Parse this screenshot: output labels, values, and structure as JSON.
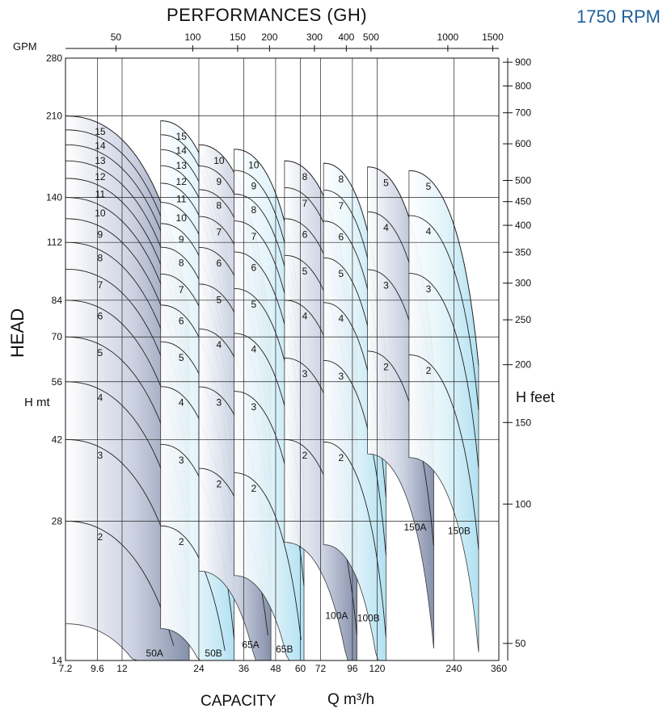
{
  "chart_data": {
    "type": "line",
    "title": "PERFORMANCES (GH)",
    "speed_label": "1750 RPM",
    "gpm_label": "GPM",
    "ylabel": "HEAD",
    "ylabel_unit": "H mt",
    "y2label": "H feet",
    "xlabel": "CAPACITY",
    "xlabel_unit": "Q m³/h",
    "x_scale": "log",
    "y_scale": "log",
    "xlim": [
      7.2,
      360
    ],
    "ylim": [
      14,
      280
    ],
    "x_ticks": [
      "7.2",
      "9.6",
      "12",
      "24",
      "36",
      "48",
      "60",
      "72",
      "96",
      "120",
      "240",
      "360"
    ],
    "x_tick_values": [
      7.2,
      9.6,
      12,
      24,
      36,
      48,
      60,
      72,
      96,
      120,
      240,
      360
    ],
    "gpm_ticks": [
      "50",
      "100",
      "150",
      "200",
      "300",
      "400",
      "500",
      "1000",
      "1500"
    ],
    "gpm_tick_values": [
      50,
      100,
      150,
      200,
      300,
      400,
      500,
      1000,
      1500
    ],
    "y_ticks": [
      "14",
      "28",
      "42",
      "56",
      "70",
      "84",
      "112",
      "140",
      "210",
      "280"
    ],
    "y_tick_values": [
      14,
      28,
      42,
      56,
      70,
      84,
      112,
      140,
      210,
      280
    ],
    "feet_ticks": [
      "50",
      "100",
      "150",
      "200",
      "250",
      "300",
      "350",
      "400",
      "450",
      "500",
      "600",
      "700",
      "800",
      "900"
    ],
    "feet_tick_values": [
      50,
      100,
      150,
      200,
      250,
      300,
      350,
      400,
      450,
      500,
      600,
      700,
      800,
      900
    ],
    "grid": true,
    "pump_models": [
      {
        "name": "50A",
        "stages": [
          "2",
          "3",
          "4",
          "5",
          "6",
          "7",
          "8",
          "9",
          "10",
          "11",
          "12",
          "13",
          "14",
          "15"
        ]
      },
      {
        "name": "50B",
        "stages": [
          "2",
          "3",
          "4",
          "5",
          "6",
          "7",
          "8",
          "9",
          "10",
          "11",
          "12",
          "13",
          "14",
          "15"
        ]
      },
      {
        "name": "65A",
        "stages": [
          "2",
          "3",
          "4",
          "5",
          "6",
          "7",
          "8",
          "9",
          "10"
        ]
      },
      {
        "name": "65B",
        "stages": [
          "2",
          "3",
          "4",
          "5",
          "6",
          "7",
          "8",
          "9",
          "10"
        ]
      },
      {
        "name": "100A",
        "stages": [
          "2",
          "3",
          "4",
          "5",
          "6",
          "7",
          "8"
        ]
      },
      {
        "name": "100B",
        "stages": [
          "2",
          "3",
          "4",
          "5",
          "6",
          "7",
          "8"
        ]
      },
      {
        "name": "150A",
        "stages": [
          "2",
          "3",
          "4",
          "5"
        ]
      },
      {
        "name": "150B",
        "stages": [
          "2",
          "3",
          "4",
          "5"
        ]
      }
    ]
  },
  "colors": {
    "rpm": "#1f5f9a",
    "band_dark": "#7f8aa6",
    "band_light": "#aee0f2",
    "grid": "#222222"
  }
}
